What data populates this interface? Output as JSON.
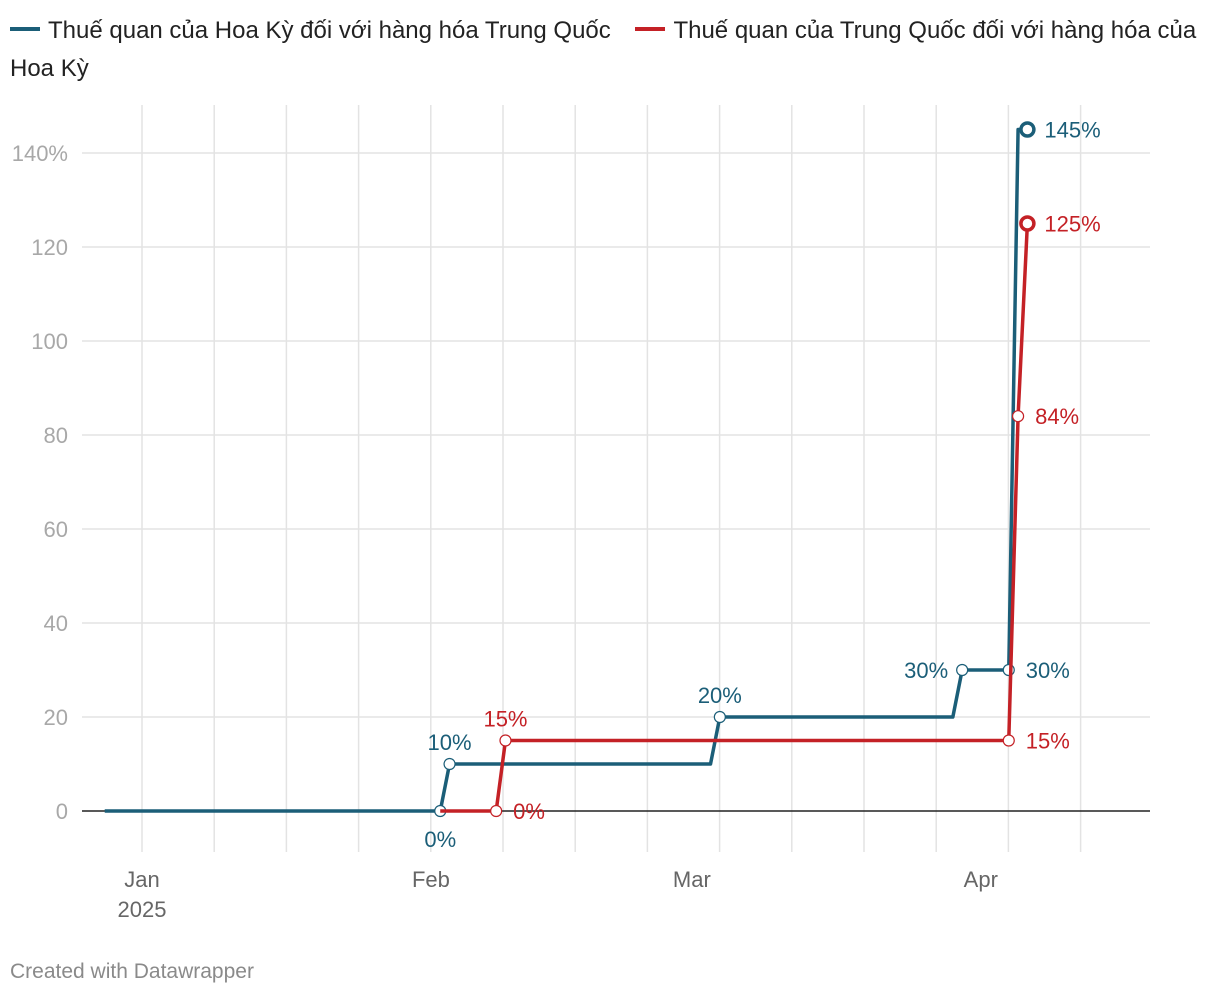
{
  "chart_data": {
    "type": "line",
    "title": "",
    "xlabel": "",
    "ylabel": "",
    "ylim": [
      -8,
      150
    ],
    "xlim": [
      "2024-12-27",
      "2025-04-15"
    ],
    "y_ticks": [
      "140%",
      "120",
      "100",
      "80",
      "60",
      "40",
      "20",
      "0"
    ],
    "y_tick_values": [
      140,
      120,
      100,
      80,
      60,
      40,
      20,
      0
    ],
    "x_ticks": [
      {
        "label": "Jan",
        "sub": "2025",
        "date": "2025-01-01"
      },
      {
        "label": "Feb",
        "sub": "",
        "date": "2025-02-01"
      },
      {
        "label": "Mar",
        "sub": "",
        "date": "2025-03-01"
      },
      {
        "label": "Apr",
        "sub": "",
        "date": "2025-04-01"
      }
    ],
    "grid": true,
    "legend_position": "top-left",
    "series": [
      {
        "name": "Thuế quan của Hoa Kỳ đối với hàng hóa Trung Quốc",
        "color": "#1b5e78",
        "points": [
          {
            "x": "2024-12-28",
            "y": 0
          },
          {
            "x": "2025-02-02",
            "y": 0
          },
          {
            "x": "2025-02-03",
            "y": 10
          },
          {
            "x": "2025-03-03",
            "y": 10
          },
          {
            "x": "2025-03-04",
            "y": 20
          },
          {
            "x": "2025-03-29",
            "y": 20
          },
          {
            "x": "2025-03-30",
            "y": 30
          },
          {
            "x": "2025-04-02",
            "y": 30
          },
          {
            "x": "2025-04-04",
            "y": 30
          },
          {
            "x": "2025-04-05",
            "y": 145
          },
          {
            "x": "2025-04-06",
            "y": 145
          }
        ],
        "labels": [
          {
            "x": "2025-02-02",
            "y": 0,
            "text": "0%",
            "pos": "below"
          },
          {
            "x": "2025-02-03",
            "y": 10,
            "text": "10%",
            "pos": "above"
          },
          {
            "x": "2025-03-04",
            "y": 20,
            "text": "20%",
            "pos": "above"
          },
          {
            "x": "2025-03-30",
            "y": 30,
            "text": "30%",
            "pos": "left"
          },
          {
            "x": "2025-04-04",
            "y": 30,
            "text": "30%",
            "pos": "right"
          },
          {
            "x": "2025-04-06",
            "y": 145,
            "text": "145%",
            "pos": "right",
            "end": true
          }
        ]
      },
      {
        "name": "Thuế quan của Trung Quốc đối với hàng hóa của Hoa Kỳ",
        "color": "#c42126",
        "points": [
          {
            "x": "2025-02-02",
            "y": 0
          },
          {
            "x": "2025-02-08",
            "y": 0
          },
          {
            "x": "2025-02-09",
            "y": 15
          },
          {
            "x": "2025-04-04",
            "y": 15
          },
          {
            "x": "2025-04-05",
            "y": 84
          },
          {
            "x": "2025-04-06",
            "y": 125
          }
        ],
        "labels": [
          {
            "x": "2025-02-08",
            "y": 0,
            "text": "0%",
            "pos": "right"
          },
          {
            "x": "2025-02-09",
            "y": 15,
            "text": "15%",
            "pos": "above"
          },
          {
            "x": "2025-04-04",
            "y": 15,
            "text": "15%",
            "pos": "right"
          },
          {
            "x": "2025-04-05",
            "y": 84,
            "text": "84%",
            "pos": "right"
          },
          {
            "x": "2025-04-06",
            "y": 125,
            "text": "125%",
            "pos": "right",
            "end": true
          }
        ]
      }
    ]
  },
  "footer": "Created with Datawrapper"
}
